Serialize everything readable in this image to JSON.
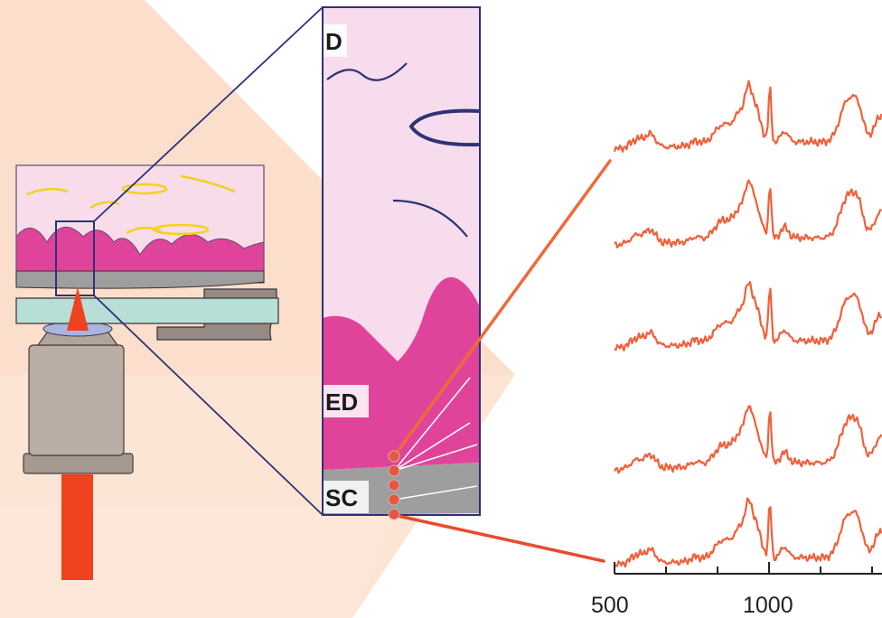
{
  "layers": {
    "dermis_label": "D",
    "epidermis_label": "ED",
    "stratum_corneum_label": "SC"
  },
  "spectra_axis": {
    "tick_labels": [
      "500",
      "1000"
    ]
  },
  "colors": {
    "spectrum_line": "#f0603a",
    "leader_line": "#ee6a3a",
    "probe_dots": "#ea5540",
    "laser_beam": "#f0421e",
    "epidermis": "#e0449a",
    "dermis": "#f7dced",
    "stratum_corneum": "#9e9e9e",
    "outline": "#2e3275",
    "light_cone": "#fbd9c3",
    "yellow_fibers": "#f2d31a",
    "objective": "#b9ada5",
    "coverslip": "#b8ded8",
    "stage_holder": "#958a84"
  },
  "icons": {
    "microscope_objective": "microscope-objective-icon",
    "skin_sample": "skin-cross-section-icon",
    "laser": "laser-beam-icon"
  }
}
